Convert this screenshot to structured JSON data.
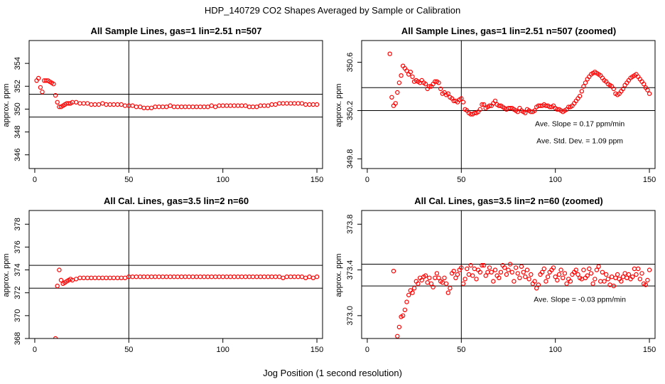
{
  "figure": {
    "title": "HDP_140729  CO2 Shapes Averaged by Sample or Calibration",
    "xlabel": "Jog Position (1 second resolution)"
  },
  "chart_data": [
    {
      "type": "scatter",
      "title": "All Sample Lines, gas=1 lin=2.51 n=507",
      "xlabel": "",
      "ylabel": "approx. ppm",
      "xlim": [
        -3,
        153
      ],
      "ylim": [
        344.8,
        356.0
      ],
      "xticks": [
        0,
        50,
        100,
        150
      ],
      "yticks": [
        346,
        348,
        350,
        352,
        354
      ],
      "vline": 50,
      "hlines": [
        349.3,
        351.3
      ],
      "color": "#ff0000",
      "annotations": [],
      "x": [
        1,
        2,
        3,
        4,
        5,
        6,
        7,
        8,
        9,
        10,
        11,
        12,
        13,
        14,
        15,
        16,
        17,
        18,
        19,
        20,
        22,
        24,
        26,
        28,
        30,
        32,
        34,
        36,
        38,
        40,
        42,
        44,
        46,
        48,
        50,
        52,
        54,
        56,
        58,
        60,
        62,
        64,
        66,
        68,
        70,
        72,
        74,
        76,
        78,
        80,
        82,
        84,
        86,
        88,
        90,
        92,
        94,
        96,
        98,
        100,
        102,
        104,
        106,
        108,
        110,
        112,
        114,
        116,
        118,
        120,
        122,
        124,
        126,
        128,
        130,
        132,
        134,
        136,
        138,
        140,
        142,
        144,
        146,
        148,
        150
      ],
      "y": [
        352.5,
        352.7,
        351.9,
        351.5,
        352.5,
        352.5,
        352.5,
        352.4,
        352.3,
        352.2,
        351.2,
        350.6,
        350.2,
        350.2,
        350.3,
        350.4,
        350.5,
        350.5,
        350.5,
        350.6,
        350.6,
        350.5,
        350.5,
        350.5,
        350.4,
        350.4,
        350.4,
        350.5,
        350.4,
        350.4,
        350.4,
        350.4,
        350.4,
        350.3,
        350.3,
        350.3,
        350.2,
        350.2,
        350.1,
        350.1,
        350.1,
        350.2,
        350.2,
        350.2,
        350.2,
        350.3,
        350.2,
        350.2,
        350.2,
        350.2,
        350.2,
        350.2,
        350.2,
        350.2,
        350.2,
        350.2,
        350.3,
        350.2,
        350.3,
        350.3,
        350.3,
        350.3,
        350.3,
        350.3,
        350.3,
        350.3,
        350.2,
        350.2,
        350.2,
        350.3,
        350.3,
        350.3,
        350.4,
        350.4,
        350.5,
        350.5,
        350.5,
        350.5,
        350.5,
        350.5,
        350.5,
        350.4,
        350.4,
        350.4,
        350.4
      ]
    },
    {
      "type": "scatter",
      "title": "All Sample Lines, gas=1 lin=2.51 n=507 (zoomed)",
      "xlabel": "",
      "ylabel": "approx. ppm",
      "xlim": [
        -3,
        153
      ],
      "ylim": [
        349.72,
        350.78
      ],
      "xticks": [
        0,
        50,
        100,
        150
      ],
      "yticks": [
        349.8,
        350.2,
        350.6
      ],
      "vline": 50,
      "hlines": [
        350.2,
        350.39
      ],
      "color": "#ff0000",
      "annotations": [
        {
          "text": "Ave. Slope =  0.17  ppm/min",
          "x": 113,
          "y": 350.07
        },
        {
          "text": "Ave. Std. Dev. =  1.09  ppm",
          "x": 113,
          "y": 349.93
        }
      ],
      "x": [
        12,
        13,
        14,
        15,
        16,
        17,
        18,
        19,
        20,
        21,
        22,
        23,
        24,
        25,
        26,
        27,
        28,
        29,
        30,
        31,
        32,
        33,
        34,
        35,
        36,
        37,
        38,
        39,
        40,
        41,
        42,
        43,
        44,
        45,
        46,
        47,
        48,
        49,
        50,
        51,
        52,
        53,
        54,
        55,
        56,
        57,
        58,
        59,
        60,
        61,
        62,
        63,
        64,
        65,
        66,
        67,
        68,
        69,
        70,
        71,
        72,
        73,
        74,
        75,
        76,
        77,
        78,
        79,
        80,
        81,
        82,
        83,
        84,
        85,
        86,
        87,
        88,
        89,
        90,
        91,
        92,
        93,
        94,
        95,
        96,
        97,
        98,
        99,
        100,
        101,
        102,
        103,
        104,
        105,
        106,
        107,
        108,
        109,
        110,
        111,
        112,
        113,
        114,
        115,
        116,
        117,
        118,
        119,
        120,
        121,
        122,
        123,
        124,
        125,
        126,
        127,
        128,
        129,
        130,
        131,
        132,
        133,
        134,
        135,
        136,
        137,
        138,
        139,
        140,
        141,
        142,
        143,
        144,
        145,
        146,
        147,
        148,
        149,
        150
      ],
      "y": [
        350.67,
        350.31,
        350.24,
        350.26,
        350.35,
        350.43,
        350.49,
        350.57,
        350.55,
        350.53,
        350.5,
        350.52,
        350.48,
        350.44,
        350.45,
        350.44,
        350.43,
        350.45,
        350.43,
        350.42,
        350.38,
        350.4,
        350.4,
        350.42,
        350.44,
        350.44,
        350.43,
        350.38,
        350.34,
        350.35,
        350.33,
        350.34,
        350.31,
        350.3,
        350.28,
        350.28,
        350.27,
        350.29,
        350.3,
        350.27,
        350.21,
        350.2,
        350.18,
        350.17,
        350.17,
        350.18,
        350.18,
        350.19,
        350.21,
        350.25,
        350.25,
        350.22,
        350.23,
        350.24,
        350.24,
        350.26,
        350.28,
        350.25,
        350.24,
        350.24,
        350.23,
        350.22,
        350.21,
        350.22,
        350.22,
        350.22,
        350.21,
        350.2,
        350.19,
        350.22,
        350.2,
        350.19,
        350.18,
        350.21,
        350.2,
        350.19,
        350.19,
        350.2,
        350.23,
        350.24,
        350.24,
        350.24,
        350.25,
        350.24,
        350.24,
        350.23,
        350.23,
        350.24,
        350.22,
        350.21,
        350.21,
        350.2,
        350.19,
        350.2,
        350.21,
        350.23,
        350.23,
        350.24,
        350.26,
        350.28,
        350.3,
        350.32,
        350.36,
        350.4,
        350.43,
        350.46,
        350.48,
        350.5,
        350.51,
        350.52,
        350.51,
        350.5,
        350.49,
        350.47,
        350.45,
        350.44,
        350.42,
        350.41,
        350.4,
        350.38,
        350.34,
        350.33,
        350.34,
        350.36,
        350.38,
        350.41,
        350.43,
        350.45,
        350.47,
        350.48,
        350.49,
        350.5,
        350.48,
        350.46,
        350.44,
        350.42,
        350.39,
        350.37,
        350.34
      ]
    },
    {
      "type": "scatter",
      "title": "All Cal. Lines, gas=3.5 lin=2 n=60",
      "xlabel": "",
      "ylabel": "approx. ppm",
      "xlim": [
        -3,
        153
      ],
      "ylim": [
        368.0,
        379.2
      ],
      "xticks": [
        0,
        50,
        100,
        150
      ],
      "yticks": [
        368,
        370,
        372,
        374,
        376,
        378
      ],
      "vline": 50,
      "hlines": [
        372.4,
        374.4
      ],
      "color": "#ff0000",
      "annotations": [],
      "x": [
        11,
        12,
        13,
        14,
        15,
        16,
        17,
        18,
        19,
        20,
        22,
        24,
        26,
        28,
        30,
        32,
        34,
        36,
        38,
        40,
        42,
        44,
        46,
        48,
        50,
        52,
        54,
        56,
        58,
        60,
        62,
        64,
        66,
        68,
        70,
        72,
        74,
        76,
        78,
        80,
        82,
        84,
        86,
        88,
        90,
        92,
        94,
        96,
        98,
        100,
        102,
        104,
        106,
        108,
        110,
        112,
        114,
        116,
        118,
        120,
        122,
        124,
        126,
        128,
        130,
        132,
        134,
        136,
        138,
        140,
        142,
        144,
        146,
        148,
        150
      ],
      "y": [
        368.0,
        372.6,
        374.0,
        373.1,
        372.8,
        372.9,
        373.0,
        373.1,
        373.2,
        373.1,
        373.2,
        373.3,
        373.3,
        373.3,
        373.3,
        373.3,
        373.3,
        373.3,
        373.3,
        373.3,
        373.3,
        373.3,
        373.3,
        373.3,
        373.4,
        373.4,
        373.4,
        373.4,
        373.4,
        373.4,
        373.4,
        373.4,
        373.4,
        373.4,
        373.4,
        373.4,
        373.4,
        373.4,
        373.4,
        373.4,
        373.4,
        373.4,
        373.4,
        373.4,
        373.4,
        373.4,
        373.4,
        373.4,
        373.4,
        373.4,
        373.4,
        373.4,
        373.4,
        373.4,
        373.4,
        373.4,
        373.4,
        373.4,
        373.4,
        373.4,
        373.4,
        373.4,
        373.4,
        373.4,
        373.4,
        373.3,
        373.4,
        373.4,
        373.4,
        373.4,
        373.4,
        373.3,
        373.4,
        373.3,
        373.4
      ]
    },
    {
      "type": "scatter",
      "title": "All Cal. Lines, gas=3.5 lin=2 n=60 (zoomed)",
      "xlabel": "",
      "ylabel": "approx. ppm",
      "xlim": [
        -3,
        153
      ],
      "ylim": [
        372.8,
        373.92
      ],
      "xticks": [
        0,
        50,
        100,
        150
      ],
      "yticks": [
        373.0,
        373.4,
        373.8
      ],
      "vline": 50,
      "hlines": [
        373.26,
        373.45
      ],
      "color": "#ff0000",
      "annotations": [
        {
          "text": "Ave. Slope =  -0.03  ppm/min",
          "x": 113,
          "y": 373.12
        }
      ],
      "x": [
        14,
        16,
        17,
        18,
        19,
        20,
        21,
        22,
        23,
        24,
        25,
        26,
        27,
        28,
        29,
        30,
        31,
        32,
        33,
        34,
        35,
        36,
        37,
        38,
        39,
        40,
        41,
        42,
        43,
        44,
        45,
        46,
        47,
        48,
        49,
        50,
        51,
        52,
        53,
        54,
        55,
        56,
        57,
        58,
        59,
        60,
        61,
        62,
        63,
        64,
        65,
        66,
        67,
        68,
        69,
        70,
        71,
        72,
        73,
        74,
        75,
        76,
        77,
        78,
        79,
        80,
        81,
        82,
        83,
        84,
        85,
        86,
        87,
        88,
        89,
        90,
        91,
        92,
        93,
        94,
        95,
        96,
        97,
        98,
        99,
        100,
        101,
        102,
        103,
        104,
        105,
        106,
        107,
        108,
        109,
        110,
        111,
        112,
        113,
        114,
        115,
        116,
        117,
        118,
        119,
        120,
        121,
        122,
        123,
        124,
        125,
        126,
        127,
        128,
        129,
        130,
        131,
        132,
        133,
        134,
        135,
        136,
        137,
        138,
        139,
        140,
        141,
        142,
        143,
        144,
        145,
        146,
        147,
        148,
        149,
        150
      ],
      "y": [
        373.39,
        372.82,
        372.9,
        372.99,
        373.0,
        373.05,
        373.12,
        373.18,
        373.22,
        373.2,
        373.24,
        373.3,
        373.28,
        373.33,
        373.31,
        373.34,
        373.35,
        373.29,
        373.33,
        373.28,
        373.25,
        373.33,
        373.37,
        373.33,
        373.3,
        373.29,
        373.33,
        373.28,
        373.2,
        373.24,
        373.37,
        373.39,
        373.33,
        373.36,
        373.4,
        373.42,
        373.28,
        373.32,
        373.41,
        373.36,
        373.44,
        373.35,
        373.41,
        373.32,
        373.4,
        373.38,
        373.44,
        373.44,
        373.35,
        373.38,
        373.42,
        373.38,
        373.3,
        373.4,
        373.35,
        373.33,
        373.38,
        373.44,
        373.42,
        373.36,
        373.4,
        373.45,
        373.38,
        373.3,
        373.42,
        373.37,
        373.33,
        373.43,
        373.38,
        373.34,
        373.4,
        373.32,
        373.36,
        373.28,
        373.3,
        373.24,
        373.27,
        373.36,
        373.38,
        373.41,
        373.3,
        373.34,
        373.38,
        373.4,
        373.42,
        373.34,
        373.31,
        373.36,
        373.4,
        373.33,
        373.37,
        373.28,
        373.32,
        373.3,
        373.36,
        373.38,
        373.4,
        373.36,
        373.33,
        373.32,
        373.4,
        373.33,
        373.35,
        373.41,
        373.37,
        373.28,
        373.32,
        373.4,
        373.43,
        373.3,
        373.38,
        373.3,
        373.36,
        373.32,
        373.27,
        373.34,
        373.26,
        373.33,
        373.36,
        373.32,
        373.3,
        373.34,
        373.37,
        373.33,
        373.36,
        373.32,
        373.34,
        373.41,
        373.36,
        373.41,
        373.32,
        373.37,
        373.28,
        373.27,
        373.31,
        373.4
      ]
    }
  ]
}
